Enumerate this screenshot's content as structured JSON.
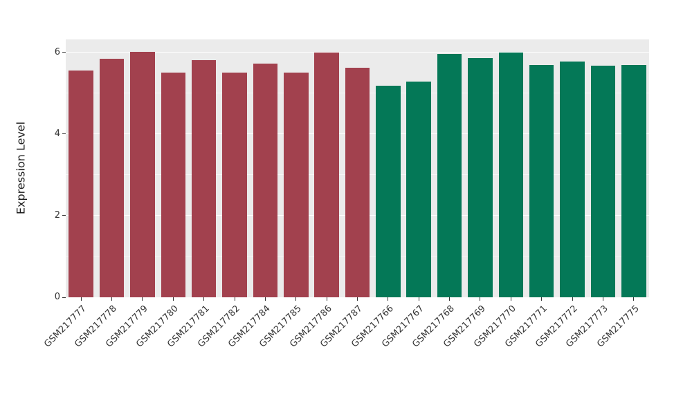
{
  "chart_data": {
    "type": "bar",
    "title": "",
    "xlabel": "",
    "ylabel": "Expression Level",
    "ylim": [
      0,
      6.32
    ],
    "yticks_major": [
      0,
      2,
      4,
      6
    ],
    "yticks_minor": [
      1,
      3,
      5
    ],
    "grid": "on",
    "legend_position": "none",
    "categories": [
      "GSM217777",
      "GSM217778",
      "GSM217779",
      "GSM217780",
      "GSM217781",
      "GSM217782",
      "GSM217784",
      "GSM217785",
      "GSM217786",
      "GSM217787",
      "GSM217766",
      "GSM217767",
      "GSM217768",
      "GSM217769",
      "GSM217770",
      "GSM217771",
      "GSM217772",
      "GSM217773",
      "GSM217775"
    ],
    "values": [
      5.55,
      5.85,
      6.02,
      5.5,
      5.82,
      5.5,
      5.72,
      5.5,
      6.0,
      5.62,
      5.18,
      5.28,
      5.97,
      5.87,
      6.0,
      5.7,
      5.78,
      5.67,
      5.7
    ],
    "group_index": [
      0,
      0,
      0,
      0,
      0,
      0,
      0,
      0,
      0,
      0,
      1,
      1,
      1,
      1,
      1,
      1,
      1,
      1,
      1
    ],
    "group_colors": [
      "#A2414E",
      "#047857"
    ],
    "panel_background": "#EBEBEB",
    "grid_color": "#FFFFFF",
    "text_color": "#333333"
  }
}
